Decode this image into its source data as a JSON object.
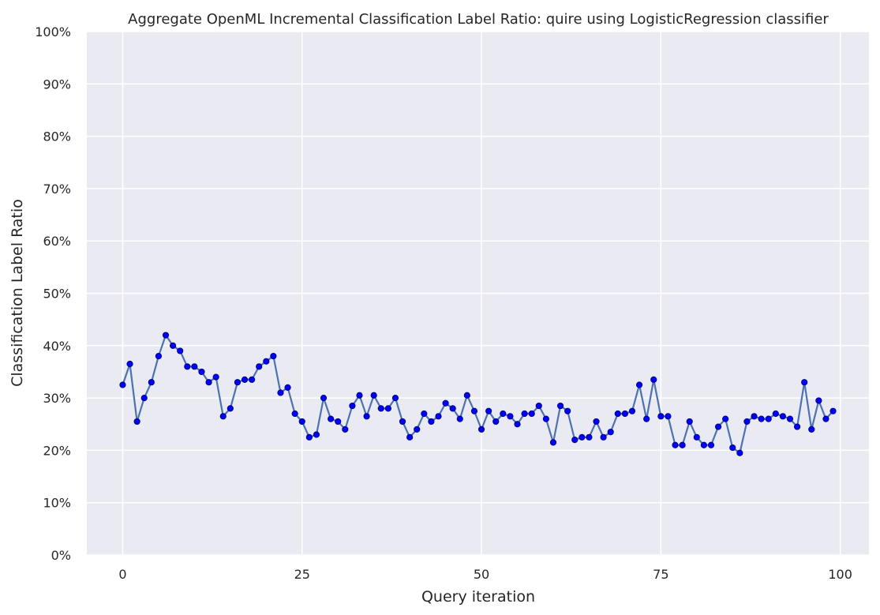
{
  "chart_data": {
    "type": "line",
    "title": "Aggregate OpenML Incremental Classification Label Ratio: quire using LogisticRegression classifier",
    "xlabel": "Query iteration",
    "ylabel": "Classification Label Ratio",
    "xlim": [
      -5,
      104
    ],
    "ylim": [
      0,
      100
    ],
    "x_ticks": [
      0,
      25,
      50,
      75,
      100
    ],
    "x_tick_labels": [
      "0",
      "25",
      "50",
      "75",
      "100"
    ],
    "y_ticks": [
      0,
      10,
      20,
      30,
      40,
      50,
      60,
      70,
      80,
      90,
      100
    ],
    "y_tick_labels": [
      "0%",
      "10%",
      "20%",
      "30%",
      "40%",
      "50%",
      "60%",
      "70%",
      "80%",
      "90%",
      "100%"
    ],
    "grid": true,
    "background_color": "#EAEAF2",
    "grid_color": "#FFFFFF",
    "line_color": "#4C72B0",
    "marker_color": "#0000FF",
    "marker_edge_color": "#00008B",
    "series": [
      {
        "x": [
          0,
          1,
          2,
          3,
          4,
          5,
          6,
          7,
          8,
          9,
          10,
          11,
          12,
          13,
          14,
          15,
          16,
          17,
          18,
          19,
          20,
          21,
          22,
          23,
          24,
          25,
          26,
          27,
          28,
          29,
          30,
          31,
          32,
          33,
          34,
          35,
          36,
          37,
          38,
          39,
          40,
          41,
          42,
          43,
          44,
          45,
          46,
          47,
          48,
          49,
          50,
          51,
          52,
          53,
          54,
          55,
          56,
          57,
          58,
          59,
          60,
          61,
          62,
          63,
          64,
          65,
          66,
          67,
          68,
          69,
          70,
          71,
          72,
          73,
          74,
          75,
          76,
          77,
          78,
          79,
          80,
          81,
          82,
          83,
          84,
          85,
          86,
          87,
          88,
          89,
          90,
          91,
          92,
          93,
          94,
          95,
          96,
          97,
          98,
          99
        ],
        "values": [
          32.5,
          36.5,
          25.5,
          30,
          33,
          38,
          42,
          40,
          39,
          36,
          36,
          35,
          33,
          34,
          26.5,
          28,
          33,
          33.5,
          33.5,
          36,
          37,
          38,
          31,
          32,
          27,
          25.5,
          22.5,
          23,
          30,
          26,
          25.5,
          24,
          28.5,
          30.5,
          26.5,
          30.5,
          28,
          28,
          30,
          25.5,
          22.5,
          24,
          27,
          25.5,
          26.5,
          29,
          28,
          26,
          30.5,
          27.5,
          24,
          27.5,
          25.5,
          27,
          26.5,
          25,
          27,
          27,
          28.5,
          26,
          21.5,
          28.5,
          27.5,
          22,
          22.5,
          22.5,
          25.5,
          22.5,
          23.5,
          27,
          27,
          27.5,
          32.5,
          26,
          33.5,
          26.5,
          26.5,
          21,
          21,
          25.5,
          22.5,
          21,
          21,
          24.5,
          26,
          20.5,
          19.5,
          25.5,
          26.5,
          26,
          26,
          27,
          26.5,
          26,
          24.5,
          33,
          24,
          29.5,
          26,
          27.5
        ]
      }
    ]
  }
}
